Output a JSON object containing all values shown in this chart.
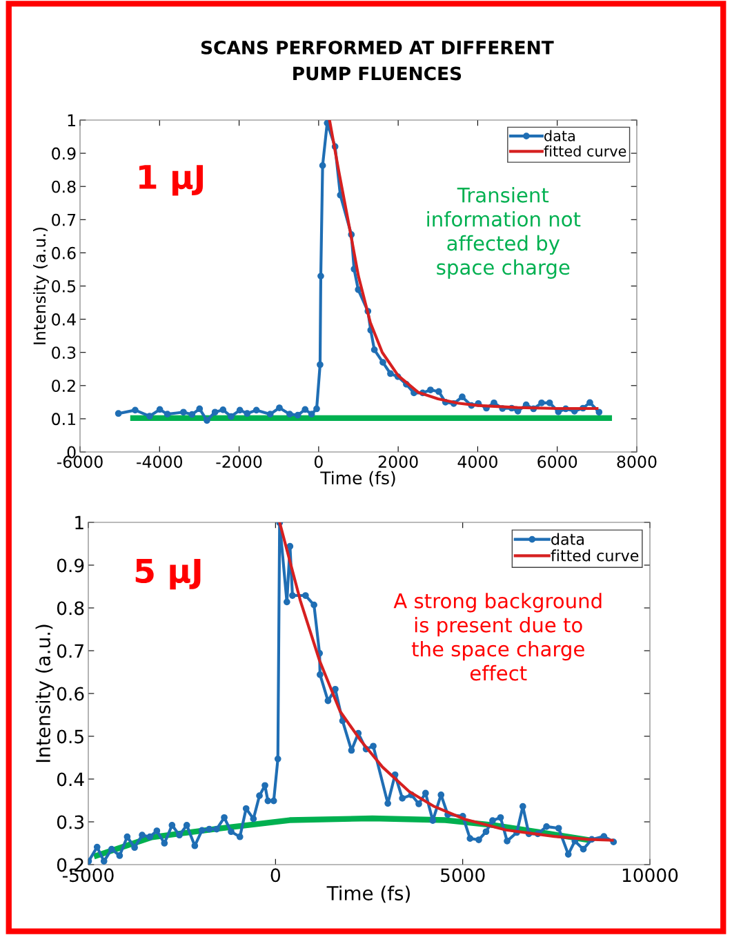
{
  "chart_data": [
    {
      "type": "line",
      "title": "SCANS PERFORMED AT DIFFERENT\nPUMP FLUENCES",
      "xlabel": "Time (fs)",
      "ylabel": "Intensity (a.u.)",
      "annotations": [
        "1 μJ",
        "Transient\ninformation not\naffected by\nspace charge"
      ],
      "series": [
        {
          "name": "data",
          "color": "#1f6eb4",
          "marker": "circle",
          "x": [
            -5035,
            -4613,
            -4249,
            -3994,
            -3803,
            -3399,
            -3185,
            -2994,
            -2809,
            -2606,
            -2405,
            -2202,
            -1981,
            -1797,
            -1565,
            -1218,
            -987,
            -727,
            -524,
            -340,
            -177,
            -50,
            36,
            54,
            100,
            215,
            413,
            545,
            823,
            892,
            996,
            1239,
            1309,
            1401,
            1615,
            1806,
            1991,
            2205,
            2396,
            2616,
            2812,
            3020,
            3189,
            3397,
            3610,
            3842,
            4015,
            4218,
            4409,
            4622,
            4854,
            5010,
            5218,
            5403,
            5606,
            5808,
            6028,
            6213,
            6433,
            6647,
            6820,
            7051
          ],
          "values": [
            0.116,
            0.126,
            0.108,
            0.128,
            0.114,
            0.12,
            0.113,
            0.13,
            0.095,
            0.12,
            0.127,
            0.107,
            0.126,
            0.116,
            0.126,
            0.114,
            0.133,
            0.114,
            0.111,
            0.128,
            0.114,
            0.13,
            0.263,
            0.53,
            0.863,
            0.991,
            0.92,
            0.774,
            0.655,
            0.551,
            0.489,
            0.424,
            0.367,
            0.308,
            0.27,
            0.236,
            0.227,
            0.204,
            0.178,
            0.178,
            0.187,
            0.182,
            0.15,
            0.146,
            0.166,
            0.14,
            0.146,
            0.132,
            0.148,
            0.131,
            0.132,
            0.123,
            0.142,
            0.13,
            0.148,
            0.148,
            0.121,
            0.13,
            0.123,
            0.132,
            0.149,
            0.12
          ]
        },
        {
          "name": "fitted curve",
          "color": "#d62020",
          "marker": "none",
          "x": [
            274,
            500,
            800,
            1000,
            1300,
            1600,
            2000,
            2500,
            3000,
            3500,
            4000,
            5000,
            6000,
            7000
          ],
          "values": [
            1.0,
            0.85,
            0.66,
            0.53,
            0.39,
            0.3,
            0.23,
            0.18,
            0.16,
            0.147,
            0.14,
            0.134,
            0.131,
            0.131
          ]
        },
        {
          "color": "#00b050",
          "marker": "none",
          "x": [
            -4665,
            7304
          ],
          "values": [
            0.102,
            0.102
          ]
        }
      ],
      "xlim": [
        -6000,
        8000
      ],
      "xticks": [
        -6000,
        -4000,
        -2000,
        0,
        2000,
        4000,
        6000,
        8000
      ],
      "ylim": [
        0,
        1
      ],
      "yticks": [
        0,
        0.1,
        0.2,
        0.3,
        0.4,
        0.5,
        0.6,
        0.7,
        0.8,
        0.9,
        1
      ],
      "legend": "top right",
      "grid": false
    },
    {
      "type": "line",
      "xlabel": "Time (fs)",
      "ylabel": "Intensity (a.u.)",
      "annotations": [
        "5 μJ",
        "A strong background\nis present due to\nthe space charge\neffect"
      ],
      "series": [
        {
          "name": "data",
          "color": "#1f6eb4",
          "marker": "circle",
          "x": [
            -4992,
            -4765,
            -4581,
            -4378,
            -4164,
            -3961,
            -3764,
            -3562,
            -3354,
            -3169,
            -2967,
            -2764,
            -2567,
            -2370,
            -2156,
            -1964,
            -1769,
            -1572,
            -1369,
            -1185,
            -951,
            -785,
            -590,
            -429,
            -282,
            -203,
            -48,
            63,
            110,
            304,
            387,
            453,
            802,
            1028,
            1176,
            1189,
            1402,
            1596,
            1791,
            2029,
            2211,
            2418,
            2611,
            3000,
            3193,
            3387,
            3632,
            3827,
            4008,
            4201,
            4421,
            4601,
            5002,
            5196,
            5429,
            5623,
            5798,
            6011,
            6186,
            6444,
            6606,
            6767,
            7006,
            7238,
            7562,
            7820,
            7996,
            8222,
            8447,
            8771,
            9029
          ],
          "values": [
            0.208,
            0.241,
            0.208,
            0.236,
            0.221,
            0.265,
            0.24,
            0.269,
            0.265,
            0.279,
            0.25,
            0.292,
            0.269,
            0.292,
            0.244,
            0.28,
            0.283,
            0.283,
            0.31,
            0.277,
            0.265,
            0.331,
            0.307,
            0.361,
            0.385,
            0.349,
            0.349,
            0.447,
            0.999,
            0.814,
            0.944,
            0.829,
            0.829,
            0.807,
            0.694,
            0.644,
            0.583,
            0.61,
            0.536,
            0.467,
            0.507,
            0.47,
            0.477,
            0.343,
            0.41,
            0.355,
            0.363,
            0.342,
            0.367,
            0.303,
            0.363,
            0.317,
            0.313,
            0.261,
            0.258,
            0.277,
            0.303,
            0.31,
            0.255,
            0.275,
            0.336,
            0.272,
            0.272,
            0.289,
            0.285,
            0.224,
            0.255,
            0.236,
            0.259,
            0.266,
            0.253
          ]
        },
        {
          "name": "fitted curve",
          "color": "#d62020",
          "marker": "none",
          "x": [
            110,
            660,
            1176,
            1727,
            2276,
            2858,
            3569,
            4214,
            5054,
            6153,
            7446,
            8351,
            8996
          ],
          "values": [
            1.0,
            0.818,
            0.677,
            0.558,
            0.49,
            0.428,
            0.371,
            0.337,
            0.306,
            0.281,
            0.266,
            0.259,
            0.257
          ]
        },
        {
          "color": "#00b050",
          "marker": "none",
          "x": [
            -4776,
            -3304,
            -1461,
            381,
            2585,
            4537,
            5830,
            7122,
            8318
          ],
          "values": [
            0.221,
            0.264,
            0.285,
            0.304,
            0.308,
            0.304,
            0.292,
            0.275,
            0.258
          ]
        }
      ],
      "xlim": [
        -5000,
        10000
      ],
      "xticks": [
        -5000,
        0,
        5000,
        10000
      ],
      "ylim": [
        0.2,
        1
      ],
      "yticks": [
        0.2,
        0.3,
        0.4,
        0.5,
        0.6,
        0.7,
        0.8,
        0.9,
        1
      ],
      "legend": "top right",
      "grid": false
    }
  ]
}
